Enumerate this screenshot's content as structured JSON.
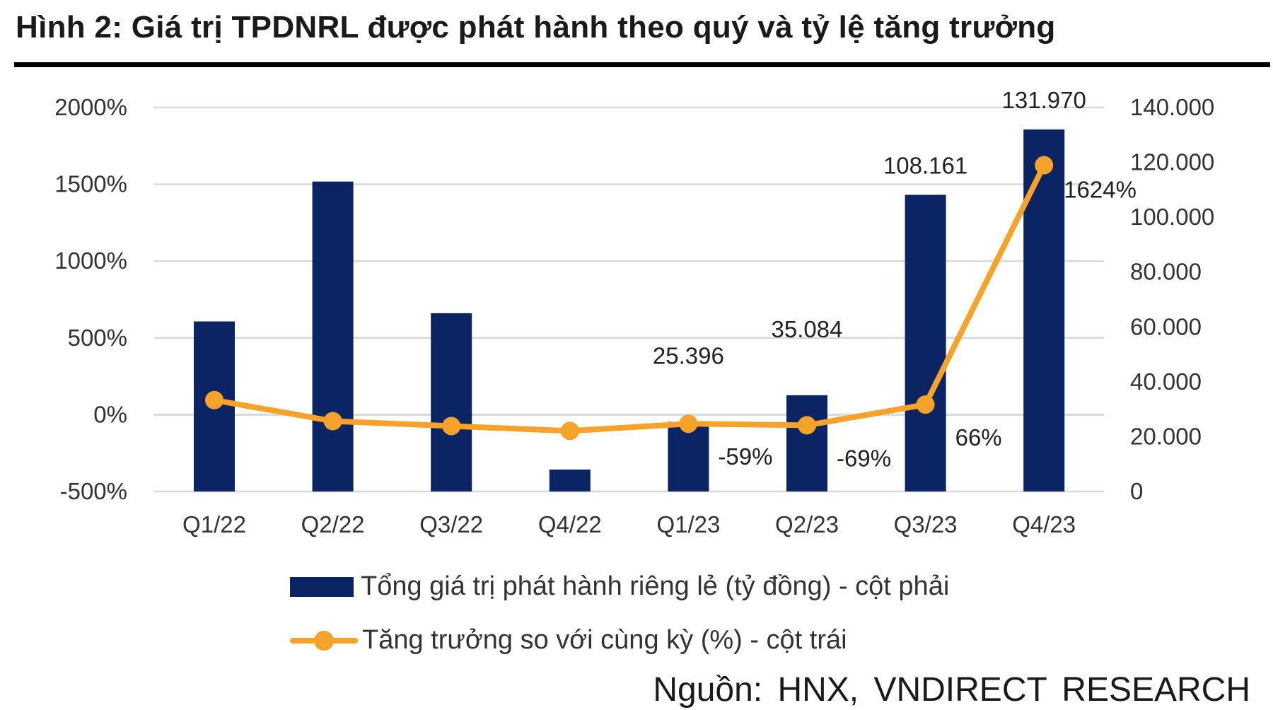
{
  "title": "Hình 2: Giá trị TPDNRL  được phát hành theo quý và tỷ lệ tăng trưởng",
  "source": "Nguồn: HNX, VNDIRECT  RESEARCH",
  "colors": {
    "bar": "#0b2463",
    "line": "#f7a229",
    "grid": "#d9d9d9"
  },
  "chart_data": {
    "type": "bar+line",
    "categories": [
      "Q1/22",
      "Q2/22",
      "Q3/22",
      "Q4/22",
      "Q1/23",
      "Q2/23",
      "Q3/23",
      "Q4/23"
    ],
    "grid": true,
    "legend_placement": "bottom",
    "y_left": {
      "range": [
        -500,
        2000
      ],
      "ticks": [
        "-500%",
        "0%",
        "500%",
        "1000%",
        "1500%",
        "2000%"
      ],
      "tick_values": [
        -500,
        0,
        500,
        1000,
        1500,
        2000
      ]
    },
    "y_right": {
      "range": [
        0,
        140000
      ],
      "ticks": [
        "0",
        "20.000",
        "40.000",
        "60.000",
        "80.000",
        "100.000",
        "120.000",
        "140.000"
      ],
      "tick_values": [
        0,
        20000,
        40000,
        60000,
        80000,
        100000,
        120000,
        140000
      ]
    },
    "series": [
      {
        "name": "Tổng giá trị phát hành riêng lẻ (tỷ đồng) - cột phải",
        "type": "bar",
        "axis": "right",
        "values": [
          62000,
          113000,
          65000,
          8000,
          25396,
          35084,
          108161,
          131970
        ],
        "labels": [
          null,
          null,
          null,
          null,
          "25.396",
          "35.084",
          "108.161",
          "131.970"
        ]
      },
      {
        "name": "Tăng trưởng so với cùng kỳ (%) - cột trái",
        "type": "line",
        "axis": "left",
        "values": [
          95,
          -42,
          -74,
          -106,
          -59,
          -69,
          66,
          1624
        ],
        "labels": [
          null,
          null,
          null,
          null,
          "-59%",
          "-69%",
          "66%",
          "1624%"
        ]
      }
    ]
  }
}
